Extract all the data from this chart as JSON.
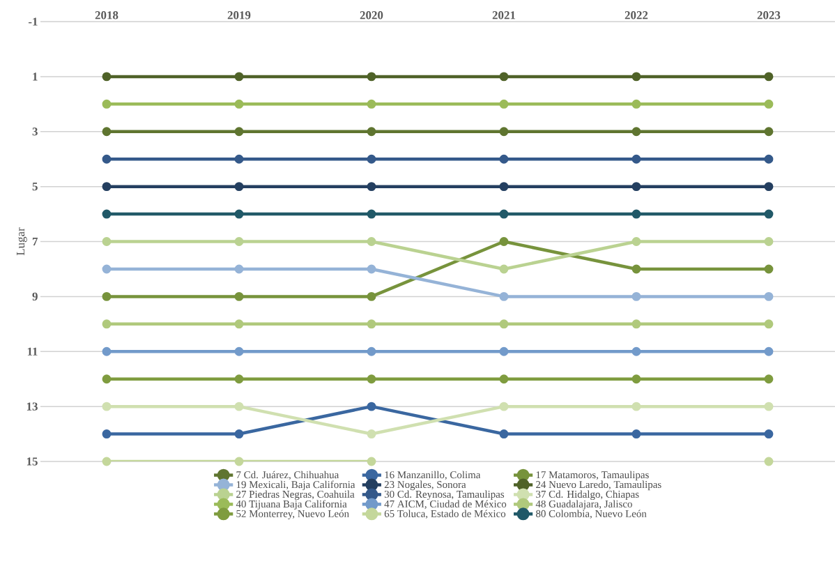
{
  "chart_data": {
    "type": "line",
    "ylabel": "Lugar",
    "categories": [
      "2018",
      "2019",
      "2020",
      "2021",
      "2022",
      "2023"
    ],
    "ylim": [
      15,
      -1
    ],
    "yticks": [
      -1,
      1,
      3,
      5,
      7,
      9,
      11,
      13,
      15
    ],
    "grid": "y",
    "legend": "bottom",
    "marker": "circle",
    "line_style": "solid",
    "series": [
      {
        "name": "7 Cd. Juárez, Chihuahua",
        "color": "#5f7530",
        "values": [
          3,
          3,
          3,
          3,
          3,
          3
        ]
      },
      {
        "name": "16 Manzanillo, Colima",
        "color": "#3a67a0",
        "values": [
          14,
          14,
          13,
          14,
          14,
          14
        ]
      },
      {
        "name": "17 Matamoros, Tamaulipas",
        "color": "#77933c",
        "values": [
          9,
          9,
          9,
          7,
          8,
          8
        ]
      },
      {
        "name": "19 Mexicali, Baja California",
        "color": "#95b3d7",
        "values": [
          8,
          8,
          8,
          9,
          9,
          9
        ]
      },
      {
        "name": "23 Nogales, Sonora",
        "color": "#243f60",
        "values": [
          5,
          5,
          5,
          5,
          5,
          5
        ]
      },
      {
        "name": "24 Nuevo Laredo, Tamaulipas",
        "color": "#4f6228",
        "values": [
          1,
          1,
          1,
          1,
          1,
          1
        ]
      },
      {
        "name": "27 Piedras Negras, Coahuila",
        "color": "#bad291",
        "values": [
          7,
          7,
          7,
          8,
          7,
          7
        ]
      },
      {
        "name": "30 Cd. Reynosa, Tamaulipas",
        "color": "#34598a",
        "values": [
          4,
          4,
          4,
          4,
          4,
          4
        ]
      },
      {
        "name": "37 Cd. Hidalgo, Chiapas",
        "color": "#d0e0b0",
        "values": [
          13,
          13,
          14,
          13,
          13,
          13
        ]
      },
      {
        "name": "40 Tijuana Baja California",
        "color": "#9bbb59",
        "values": [
          2,
          2,
          2,
          2,
          2,
          2
        ]
      },
      {
        "name": "47 AICM, Ciudad de México",
        "color": "#729aca",
        "values": [
          11,
          11,
          11,
          11,
          11,
          11
        ]
      },
      {
        "name": "48 Guadalajara, Jalisco",
        "color": "#b0c97c",
        "values": [
          10,
          10,
          10,
          10,
          10,
          10
        ]
      },
      {
        "name": "52 Monterrey, Nuevo León",
        "color": "#7f9c3f",
        "values": [
          12,
          12,
          12,
          12,
          12,
          12
        ]
      },
      {
        "name": "65 Toluca, Estado de México",
        "color": "#c4d79b",
        "values": [
          15,
          15,
          15,
          null,
          null,
          15
        ]
      },
      {
        "name": "80 Colombia, Nuevo León",
        "color": "#215968",
        "values": [
          6,
          6,
          6,
          6,
          6,
          6
        ]
      }
    ]
  }
}
